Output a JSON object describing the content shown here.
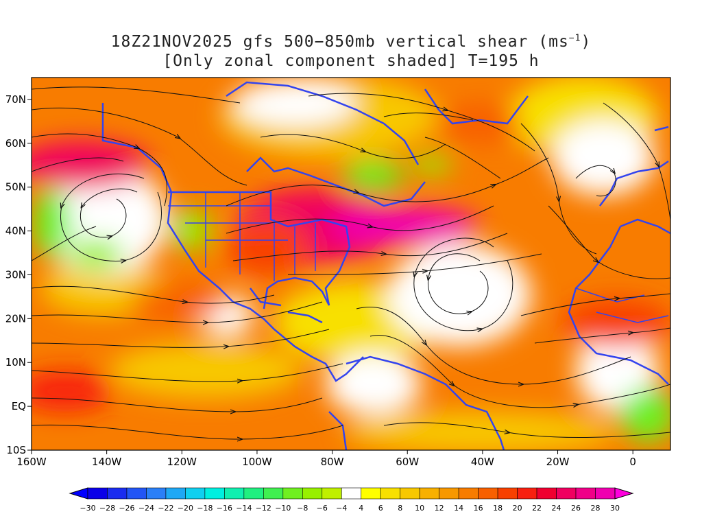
{
  "title": {
    "line1_prefix": "18Z21NOV2025 gfs 500−850mb vertical shear (ms",
    "line1_exponent": "−1",
    "line1_suffix": ")",
    "line2": "[Only zonal component shaded] T=195 h"
  },
  "map": {
    "lon_range": [
      -160,
      10
    ],
    "lat_range": [
      -10,
      75
    ],
    "x_ticks": [
      "160W",
      "140W",
      "120W",
      "100W",
      "80W",
      "60W",
      "40W",
      "20W",
      "0"
    ],
    "y_ticks": [
      "10S",
      "EQ",
      "10N",
      "20N",
      "30N",
      "40N",
      "50N",
      "60N",
      "70N"
    ],
    "coastline_color": "#3344ee",
    "streamline_color": "#111111"
  },
  "colorbar": {
    "labels": [
      "−30",
      "−28",
      "−26",
      "−24",
      "−22",
      "−20",
      "−18",
      "−16",
      "−14",
      "−12",
      "−10",
      "−8",
      "−6",
      "−4",
      "4",
      "6",
      "8",
      "10",
      "12",
      "14",
      "16",
      "18",
      "20",
      "22",
      "24",
      "26",
      "28",
      "30"
    ],
    "colors": [
      "#0a00e8",
      "#1a2cf0",
      "#2255f5",
      "#2a7ff8",
      "#1ea8f5",
      "#10d0f0",
      "#00f0e0",
      "#10f0b0",
      "#20f080",
      "#40f050",
      "#70f020",
      "#98f000",
      "#c0f000",
      "#ffffff",
      "#ffff00",
      "#f8e000",
      "#f8c800",
      "#f8b000",
      "#f89800",
      "#f87c00",
      "#f86000",
      "#f84000",
      "#f82010",
      "#f00030",
      "#f00060",
      "#f00088",
      "#f000b0"
    ],
    "min_arrow_color": "#0000ff",
    "max_arrow_color": "#ff00dd"
  }
}
